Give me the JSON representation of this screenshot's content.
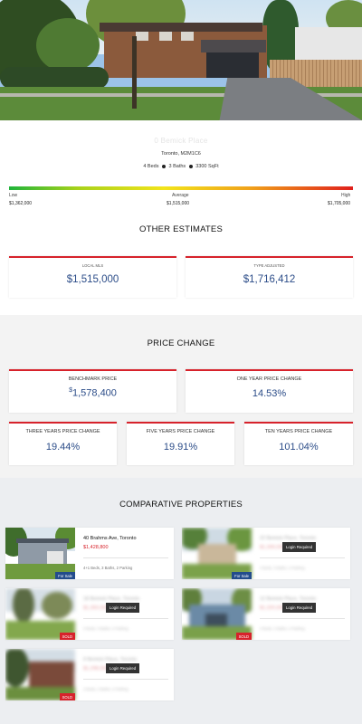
{
  "property": {
    "title": "0 Bemick Place",
    "city": "Toronto, M2M1C6",
    "beds": "4 Beds",
    "baths": "3 Baths",
    "sqft": "3300 SqFt"
  },
  "range": {
    "low_label": "Low",
    "avg_label": "Average",
    "high_label": "High",
    "low_value": "$1,362,000",
    "avg_value": "$1,515,000",
    "high_value": "$1,705,000"
  },
  "other_estimates": {
    "heading": "OTHER ESTIMATES",
    "left_label": "LOCAL MLS",
    "left_value": "$1,515,000",
    "right_label": "TYPE ADJUSTED",
    "right_value": "$1,716,412"
  },
  "price_change": {
    "heading": "PRICE CHANGE",
    "benchmark_label": "BENCHMARK PRICE",
    "benchmark_sup": "$",
    "benchmark_value": "1,578,400",
    "one_year_label": "ONE YEAR PRICE CHANGE",
    "one_year_value": "14.53%",
    "three_year_label": "THREE YEARS PRICE CHANGE",
    "three_year_value": "19.44%",
    "five_year_label": "FIVE YEARS PRICE CHANGE",
    "five_year_value": "19.91%",
    "ten_year_label": "TEN YEARS PRICE CHANGE",
    "ten_year_value": "101.04%"
  },
  "comparative": {
    "heading": "COMPARATIVE PROPERTIES",
    "login_text": "Login Required",
    "items": [
      {
        "address": "40 Brahms Ave, Toronto",
        "price": "$1,428,800",
        "details": "4+1 Beds, 3 Baths, 2 Parking",
        "tag": "For Sale"
      },
      {
        "address": "22 Bemick Place, Toronto",
        "price": "$1,399,000",
        "details": "4 Beds, 3 Baths, 2 Parking",
        "tag": "For Sale"
      },
      {
        "address": "18 Bemick Place, Toronto",
        "price": "$1,350,000",
        "details": "4 Beds, 3 Baths, 2 Parking",
        "tag": "SOLD"
      },
      {
        "address": "12 Bemick Place, Toronto",
        "price": "$1,320,000",
        "details": "4 Beds, 2 Baths, 2 Parking",
        "tag": "SOLD"
      },
      {
        "address": "9 Bemick Place, Toronto",
        "price": "$1,298,000",
        "details": "3 Beds, 2 Baths, 2 Parking",
        "tag": "SOLD"
      }
    ]
  },
  "colors": {
    "accent_red": "#d7222b",
    "value_blue": "#2b4c88",
    "tag_blue": "#234c8c"
  }
}
